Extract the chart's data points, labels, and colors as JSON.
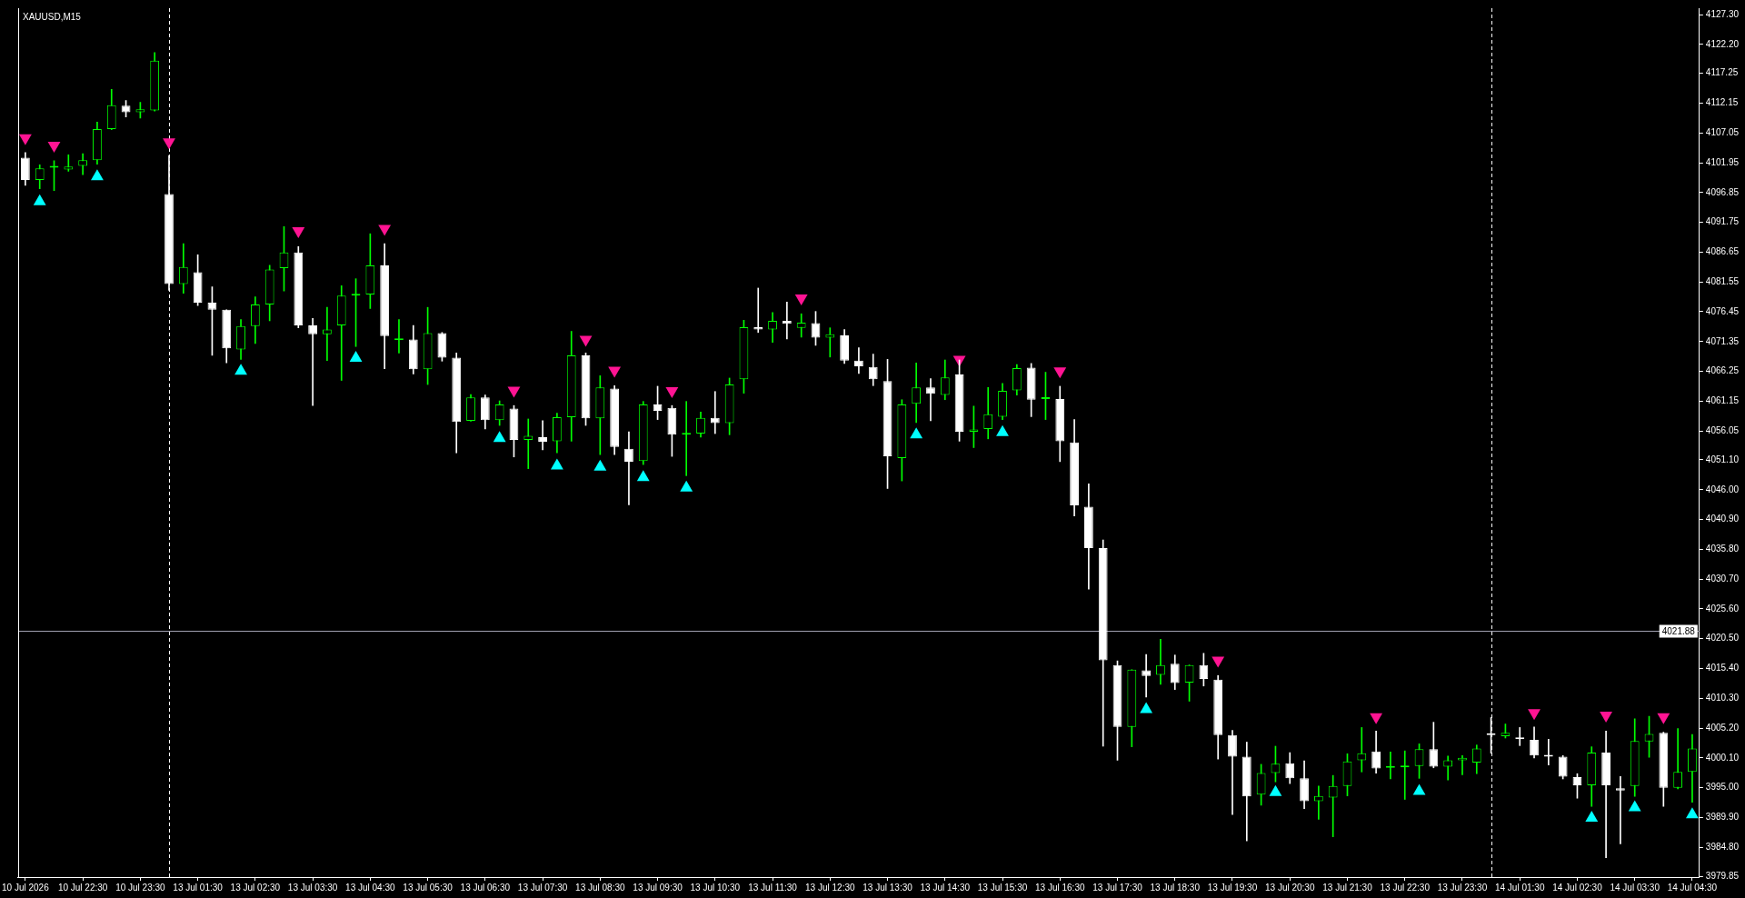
{
  "chart_data": {
    "type": "candlestick",
    "title": "XAUUSD,M15",
    "categories": [
      "10 Jul 2026",
      null,
      null,
      null,
      "10 Jul 22:30",
      null,
      null,
      null,
      "10 Jul 23:30",
      null,
      null,
      null,
      "13 Jul 01:30",
      null,
      null,
      null,
      "13 Jul 02:30",
      null,
      null,
      null,
      "13 Jul 03:30",
      null,
      null,
      null,
      "13 Jul 04:30",
      null,
      null,
      null,
      "13 Jul 05:30",
      null,
      null,
      null,
      "13 Jul 06:30",
      null,
      null,
      null,
      "13 Jul 07:30",
      null,
      null,
      null,
      "13 Jul 08:30",
      null,
      null,
      null,
      "13 Jul 09:30",
      null,
      null,
      null,
      "13 Jul 10:30",
      null,
      null,
      null,
      "13 Jul 11:30",
      null,
      null,
      null,
      "13 Jul 12:30",
      null,
      null,
      null,
      "13 Jul 13:30",
      null,
      null,
      null,
      "13 Jul 14:30",
      null,
      null,
      null,
      "13 Jul 15:30",
      null,
      null,
      null,
      "13 Jul 16:30",
      null,
      null,
      null,
      "13 Jul 17:30",
      null,
      null,
      null,
      "13 Jul 18:30",
      null,
      null,
      null,
      "13 Jul 19:30",
      null,
      null,
      null,
      "13 Jul 20:30",
      null,
      null,
      null,
      "13 Jul 21:30",
      null,
      null,
      null,
      "13 Jul 22:30",
      null,
      null,
      null,
      "13 Jul 23:30",
      null,
      null,
      null,
      "14 Jul 01:30",
      null,
      null,
      null,
      "14 Jul 02:30",
      null,
      null,
      null,
      "14 Jul 03:30",
      null,
      null,
      null,
      "14 Jul 04:30"
    ],
    "ohlc": [
      [
        4102.8,
        4103.7,
        4098.1,
        4099.0
      ],
      [
        4099.0,
        4101.6,
        4097.5,
        4101.0
      ],
      [
        4101.1,
        4102.3,
        4097.2,
        4101.2
      ],
      [
        4100.8,
        4103.3,
        4100.5,
        4101.3
      ],
      [
        4101.4,
        4103.5,
        4099.9,
        4102.4
      ],
      [
        4102.4,
        4108.9,
        4101.7,
        4107.7
      ],
      [
        4107.7,
        4114.5,
        4107.6,
        4111.8
      ],
      [
        4111.7,
        4112.6,
        4109.8,
        4110.6
      ],
      [
        4110.6,
        4112.3,
        4109.6,
        4111.1
      ],
      [
        4110.9,
        4120.8,
        4110.8,
        4119.4
      ],
      [
        4096.6,
        4103.2,
        4080.1,
        4081.2
      ],
      [
        4081.2,
        4088.1,
        4079.6,
        4084.1
      ],
      [
        4083.2,
        4086.2,
        4077.5,
        4078.0
      ],
      [
        4078.0,
        4080.7,
        4069.0,
        4076.8
      ],
      [
        4076.8,
        4076.8,
        4067.7,
        4070.2
      ],
      [
        4070.0,
        4075.1,
        4068.3,
        4074.0
      ],
      [
        4074.0,
        4079.0,
        4071.0,
        4077.7
      ],
      [
        4077.7,
        4084.4,
        4074.9,
        4083.7
      ],
      [
        4083.9,
        4091.0,
        4080.0,
        4086.6
      ],
      [
        4086.6,
        4087.6,
        4073.7,
        4074.1
      ],
      [
        4074.1,
        4075.3,
        4060.4,
        4072.6
      ],
      [
        4072.6,
        4077.2,
        4068.1,
        4073.4
      ],
      [
        4074.1,
        4080.9,
        4064.7,
        4079.2
      ],
      [
        4079.2,
        4082.1,
        4070.5,
        4079.3
      ],
      [
        4079.4,
        4089.8,
        4077.0,
        4084.4
      ],
      [
        4084.4,
        4088.1,
        4066.7,
        4072.3
      ],
      [
        4071.6,
        4075.1,
        4069.4,
        4071.7
      ],
      [
        4071.7,
        4074.1,
        4065.8,
        4066.6
      ],
      [
        4066.6,
        4077.2,
        4064.0,
        4072.8
      ],
      [
        4072.8,
        4072.9,
        4068.0,
        4068.6
      ],
      [
        4068.6,
        4069.4,
        4052.3,
        4057.6
      ],
      [
        4057.8,
        4062.3,
        4057.7,
        4061.8
      ],
      [
        4061.8,
        4062.2,
        4056.4,
        4057.9
      ],
      [
        4057.9,
        4061.2,
        4057.0,
        4060.6
      ],
      [
        4059.9,
        4060.4,
        4051.6,
        4054.5
      ],
      [
        4054.5,
        4058.1,
        4049.6,
        4055.2
      ],
      [
        4055.0,
        4057.8,
        4052.8,
        4054.2
      ],
      [
        4054.3,
        4059.1,
        4052.3,
        4058.4
      ],
      [
        4058.4,
        4073.1,
        4054.3,
        4069.0
      ],
      [
        4069.0,
        4069.4,
        4057.0,
        4058.2
      ],
      [
        4058.2,
        4065.5,
        4052.0,
        4063.5
      ],
      [
        4063.3,
        4063.8,
        4052.0,
        4053.3
      ],
      [
        4053.0,
        4055.9,
        4043.4,
        4050.8
      ],
      [
        4050.9,
        4061.1,
        4050.3,
        4060.6
      ],
      [
        4060.6,
        4063.7,
        4058.0,
        4059.5
      ],
      [
        4060.0,
        4060.4,
        4051.7,
        4055.4
      ],
      [
        4055.4,
        4061.1,
        4048.4,
        4055.5
      ],
      [
        4055.6,
        4059.3,
        4055.0,
        4058.3
      ],
      [
        4058.3,
        4062.8,
        4055.6,
        4057.4
      ],
      [
        4057.4,
        4065.1,
        4055.4,
        4064.0
      ],
      [
        4064.9,
        4075.0,
        4062.5,
        4073.8
      ],
      [
        4073.8,
        4080.5,
        4072.9,
        4073.4
      ],
      [
        4073.4,
        4076.3,
        4071.2,
        4074.9
      ],
      [
        4074.9,
        4078.1,
        4071.8,
        4074.4
      ],
      [
        4073.7,
        4076.1,
        4072.1,
        4074.6
      ],
      [
        4074.5,
        4076.5,
        4070.7,
        4072.0
      ],
      [
        4072.0,
        4073.7,
        4068.7,
        4072.6
      ],
      [
        4072.4,
        4073.4,
        4067.6,
        4068.1
      ],
      [
        4068.1,
        4070.3,
        4065.9,
        4067.1
      ],
      [
        4067.0,
        4069.2,
        4063.8,
        4064.9
      ],
      [
        4064.6,
        4068.3,
        4046.2,
        4051.7
      ],
      [
        4051.4,
        4061.4,
        4047.5,
        4060.6
      ],
      [
        4060.7,
        4067.7,
        4057.5,
        4063.5
      ],
      [
        4063.5,
        4065.0,
        4057.8,
        4062.4
      ],
      [
        4062.2,
        4068.2,
        4061.4,
        4065.2
      ],
      [
        4065.7,
        4068.2,
        4054.3,
        4055.9
      ],
      [
        4055.9,
        4060.3,
        4053.2,
        4056.3
      ],
      [
        4056.4,
        4063.5,
        4054.7,
        4058.9
      ],
      [
        4058.5,
        4064.2,
        4058.0,
        4062.9
      ],
      [
        4063.0,
        4067.4,
        4062.2,
        4066.8
      ],
      [
        4066.9,
        4067.6,
        4058.5,
        4061.4
      ],
      [
        4061.5,
        4066.1,
        4058.0,
        4061.6
      ],
      [
        4061.5,
        4063.7,
        4050.8,
        4054.3
      ],
      [
        4054.1,
        4058.0,
        4041.5,
        4043.3
      ],
      [
        4043.1,
        4047.0,
        4029.0,
        4036.0
      ],
      [
        4036.0,
        4037.4,
        4002.1,
        4016.8
      ],
      [
        4016.0,
        4016.7,
        3999.7,
        4005.4
      ],
      [
        4005.4,
        4015.2,
        4002.0,
        4015.2
      ],
      [
        4015.1,
        4017.8,
        4010.5,
        4014.1
      ],
      [
        4014.3,
        4020.4,
        4012.7,
        4016.0
      ],
      [
        4016.2,
        4017.7,
        4011.8,
        4012.9
      ],
      [
        4013.0,
        4016.0,
        4009.8,
        4016.0
      ],
      [
        4016.0,
        4018.0,
        4012.4,
        4013.6
      ],
      [
        4013.5,
        4014.2,
        3999.9,
        4004.0
      ],
      [
        4004.0,
        4004.8,
        3990.4,
        4000.3
      ],
      [
        4000.3,
        4002.8,
        3985.9,
        3993.5
      ],
      [
        3993.8,
        3999.0,
        3992.0,
        3997.5
      ],
      [
        3997.5,
        4002.1,
        3996.0,
        3999.1
      ],
      [
        3999.2,
        4001.0,
        3995.7,
        3996.6
      ],
      [
        3996.6,
        3999.6,
        3991.4,
        3992.7
      ],
      [
        3992.7,
        3995.3,
        3989.6,
        3993.6
      ],
      [
        3993.3,
        3997.1,
        3986.6,
        3995.3
      ],
      [
        3995.3,
        4000.8,
        3993.6,
        3999.5
      ],
      [
        3999.7,
        4005.3,
        3997.7,
        4000.9
      ],
      [
        4001.2,
        4004.7,
        3997.5,
        3998.3
      ],
      [
        3998.4,
        4001.1,
        3996.5,
        3998.5
      ],
      [
        3998.5,
        4001.3,
        3993.0,
        3998.8
      ],
      [
        3998.7,
        4002.5,
        3996.6,
        4001.6
      ],
      [
        4001.6,
        4006.2,
        3998.4,
        3998.6
      ],
      [
        3998.6,
        4000.4,
        3996.3,
        3999.7
      ],
      [
        3999.7,
        4000.5,
        3997.2,
        4000.1
      ],
      [
        3999.3,
        4002.3,
        3997.4,
        4001.7
      ],
      [
        4004.2,
        4007.0,
        4000.9,
        4004.0
      ],
      [
        4003.8,
        4005.9,
        4003.5,
        4004.4
      ],
      [
        4003.6,
        4005.3,
        4002.2,
        4003.3
      ],
      [
        4003.2,
        4005.4,
        4000.1,
        4000.5
      ],
      [
        4000.6,
        4003.3,
        3998.9,
        4000.3
      ],
      [
        4000.3,
        4000.5,
        3996.5,
        3996.9
      ],
      [
        3996.8,
        3997.4,
        3993.2,
        3995.4
      ],
      [
        3995.4,
        4002.0,
        3991.8,
        4001.0
      ],
      [
        4001.0,
        4004.7,
        3983.0,
        3995.4
      ],
      [
        3994.9,
        3996.9,
        3985.4,
        3994.5
      ],
      [
        3995.3,
        4006.8,
        3993.5,
        4003.0
      ],
      [
        4002.9,
        4007.2,
        4000.2,
        4004.2
      ],
      [
        4004.4,
        4004.5,
        3991.8,
        3995.0
      ],
      [
        3995.0,
        4005.1,
        3994.8,
        3997.7
      ],
      [
        3997.7,
        4004.1,
        3992.5,
        4001.7
      ]
    ],
    "colors": [
      "#ffffff",
      "#00ff00",
      "#00ff00",
      "#00ff00",
      "#00ff00",
      "#00ff00",
      "#00ff00",
      "#ffffff",
      "#00ff00",
      "#00ff00",
      "#ffffff",
      "#00ff00",
      "#ffffff",
      "#ffffff",
      "#ffffff",
      "#00ff00",
      "#00ff00",
      "#00ff00",
      "#00ff00",
      "#ffffff",
      "#ffffff",
      "#00ff00",
      "#00ff00",
      "#00ff00",
      "#00ff00",
      "#ffffff",
      "#00ff00",
      "#ffffff",
      "#00ff00",
      "#ffffff",
      "#ffffff",
      "#00ff00",
      "#ffffff",
      "#00ff00",
      "#ffffff",
      "#00ff00",
      "#ffffff",
      "#00ff00",
      "#00ff00",
      "#ffffff",
      "#00ff00",
      "#ffffff",
      "#ffffff",
      "#00ff00",
      "#ffffff",
      "#ffffff",
      "#00ff00",
      "#00ff00",
      "#ffffff",
      "#00ff00",
      "#00ff00",
      "#ffffff",
      "#00ff00",
      "#ffffff",
      "#00ff00",
      "#ffffff",
      "#00ff00",
      "#ffffff",
      "#ffffff",
      "#ffffff",
      "#ffffff",
      "#00ff00",
      "#00ff00",
      "#ffffff",
      "#00ff00",
      "#ffffff",
      "#00ff00",
      "#00ff00",
      "#00ff00",
      "#00ff00",
      "#ffffff",
      "#00ff00",
      "#ffffff",
      "#ffffff",
      "#ffffff",
      "#ffffff",
      "#ffffff",
      "#00ff00",
      "#ffffff",
      "#00ff00",
      "#ffffff",
      "#00ff00",
      "#ffffff",
      "#ffffff",
      "#ffffff",
      "#ffffff",
      "#00ff00",
      "#00ff00",
      "#ffffff",
      "#ffffff",
      "#00ff00",
      "#00ff00",
      "#00ff00",
      "#00ff00",
      "#ffffff",
      "#00ff00",
      "#00ff00",
      "#00ff00",
      "#ffffff",
      "#00ff00",
      "#00ff00",
      "#00ff00",
      "#ffffff",
      "#00ff00",
      "#ffffff",
      "#ffffff",
      "#ffffff",
      "#ffffff",
      "#ffffff",
      "#00ff00",
      "#ffffff",
      "#ffffff",
      "#00ff00",
      "#00ff00",
      "#ffffff",
      "#00ff00",
      "#00ff00"
    ],
    "series": [
      {
        "type": "scatter",
        "color": "#ff1493",
        "marker": "triangle",
        "values": [
          4106.2,
          null,
          4104.9,
          null,
          null,
          null,
          null,
          null,
          null,
          null,
          4105.5,
          null,
          null,
          null,
          null,
          null,
          null,
          null,
          null,
          4090.3,
          null,
          null,
          null,
          null,
          null,
          4090.7,
          null,
          null,
          null,
          null,
          null,
          null,
          null,
          null,
          4063.0,
          null,
          null,
          null,
          null,
          4071.7,
          null,
          4066.4,
          null,
          null,
          null,
          4062.9,
          null,
          null,
          null,
          null,
          null,
          null,
          null,
          null,
          4078.8,
          null,
          null,
          null,
          null,
          null,
          null,
          null,
          null,
          null,
          null,
          4068.3,
          null,
          null,
          null,
          null,
          null,
          null,
          4066.3,
          null,
          null,
          null,
          null,
          null,
          null,
          null,
          null,
          null,
          null,
          4016.8,
          null,
          null,
          null,
          null,
          null,
          null,
          null,
          null,
          null,
          null,
          4007.1,
          null,
          null,
          null,
          null,
          null,
          null,
          null,
          null,
          null,
          null,
          4007.8,
          null,
          null,
          null,
          null,
          4007.4,
          null,
          null,
          null,
          4007.1,
          null,
          null
        ]
      },
      {
        "type": "scatter",
        "color": "#00ffff",
        "marker": "triangle",
        "values": [
          null,
          4095.3,
          null,
          null,
          null,
          4099.6,
          null,
          null,
          null,
          null,
          null,
          null,
          null,
          null,
          null,
          4066.3,
          null,
          null,
          null,
          null,
          null,
          null,
          null,
          4068.5,
          null,
          null,
          null,
          null,
          null,
          null,
          null,
          null,
          null,
          4054.8,
          null,
          null,
          null,
          4050.1,
          null,
          null,
          4049.9,
          null,
          null,
          4048.1,
          null,
          null,
          4046.3,
          null,
          null,
          null,
          null,
          null,
          null,
          null,
          null,
          null,
          null,
          null,
          null,
          null,
          null,
          null,
          4055.4,
          null,
          null,
          null,
          null,
          null,
          4055.8,
          null,
          null,
          null,
          null,
          null,
          null,
          null,
          null,
          null,
          4008.4,
          null,
          null,
          null,
          null,
          null,
          null,
          null,
          null,
          3994.2,
          null,
          null,
          null,
          null,
          null,
          null,
          null,
          null,
          null,
          3994.4,
          null,
          null,
          null,
          null,
          null,
          null,
          null,
          null,
          null,
          null,
          null,
          3989.8,
          null,
          null,
          3991.6,
          null,
          null,
          null,
          3990.4
        ]
      }
    ],
    "ylim": [
      3979.7,
      4128.4
    ],
    "yticks": [
      {
        "value": 4127.3,
        "label": "4127.30"
      },
      {
        "value": 4122.2,
        "label": "4122.20"
      },
      {
        "value": 4117.25,
        "label": "4117.25"
      },
      {
        "value": 4112.15,
        "label": "4112.15"
      },
      {
        "value": 4107.05,
        "label": "4107.05"
      },
      {
        "value": 4101.95,
        "label": "4101.95"
      },
      {
        "value": 4096.85,
        "label": "4096.85"
      },
      {
        "value": 4091.75,
        "label": "4091.75"
      },
      {
        "value": 4086.65,
        "label": "4086.65"
      },
      {
        "value": 4081.55,
        "label": "4081.55"
      },
      {
        "value": 4076.45,
        "label": "4076.45"
      },
      {
        "value": 4071.35,
        "label": "4071.35"
      },
      {
        "value": 4066.25,
        "label": "4066.25"
      },
      {
        "value": 4061.15,
        "label": "4061.15"
      },
      {
        "value": 4056.05,
        "label": "4056.05"
      },
      {
        "value": 4051.1,
        "label": "4051.10"
      },
      {
        "value": 4046,
        "label": "4046.00"
      },
      {
        "value": 4040.9,
        "label": "4040.90"
      },
      {
        "value": 4035.8,
        "label": "4035.80"
      },
      {
        "value": 4030.7,
        "label": "4030.70"
      },
      {
        "value": 4025.6,
        "label": "4025.60"
      },
      {
        "value": 4020.5,
        "label": "4020.50"
      },
      {
        "value": 4015.4,
        "label": "4015.40"
      },
      {
        "value": 4010.3,
        "label": "4010.30"
      },
      {
        "value": 4005.2,
        "label": "4005.20"
      },
      {
        "value": 4000.1,
        "label": "4000.10"
      },
      {
        "value": 3995,
        "label": "3995.00"
      },
      {
        "value": 3989.9,
        "label": "3989.90"
      },
      {
        "value": 3984.8,
        "label": "3984.80"
      },
      {
        "value": 3979.85,
        "label": "3979.85"
      }
    ],
    "ref_lines": [
      {
        "axis": "y",
        "value": 4021.88,
        "label": "4021.88",
        "color": "#a0a0b0"
      }
    ]
  }
}
